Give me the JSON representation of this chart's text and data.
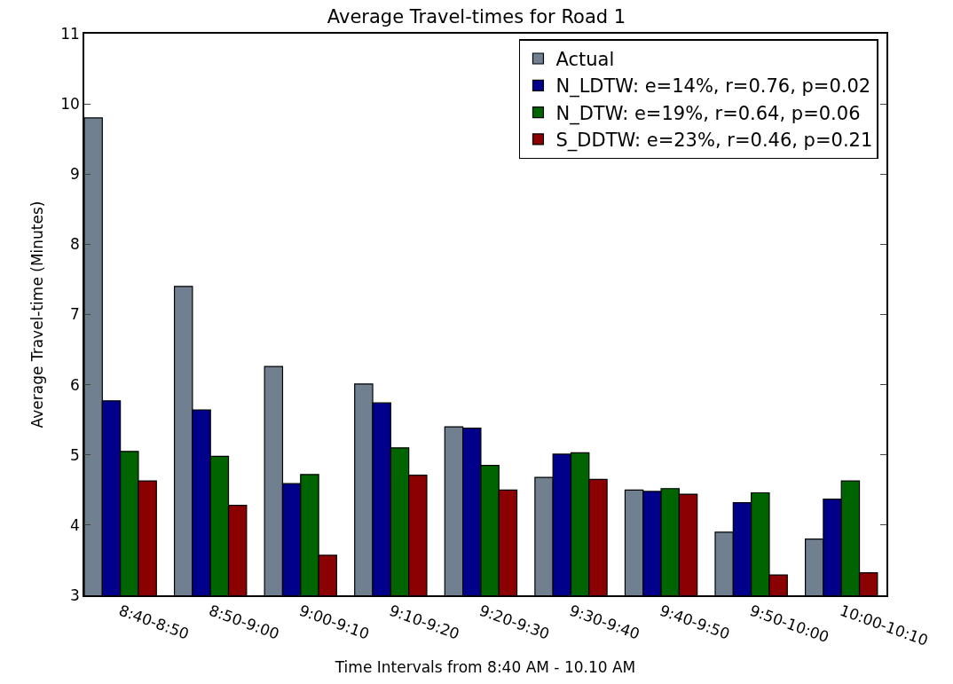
{
  "chart_data": {
    "type": "bar",
    "title": "Average Travel-times for Road 1",
    "xlabel": "Time Intervals from 8:40 AM - 10.10 AM",
    "ylabel": "Average Travel-time (Minutes)",
    "categories": [
      "8:40-8:50",
      "8:50-9:00",
      "9:00-9:10",
      "9:10-9:20",
      "9:20-9:30",
      "9:30-9:40",
      "9:40-9:50",
      "9:50-10:00",
      "10:00-10:10"
    ],
    "series": [
      {
        "name": "Actual",
        "color": "#708090",
        "values": [
          9.8,
          7.4,
          6.26,
          6.01,
          5.4,
          4.68,
          4.5,
          3.9,
          3.8
        ]
      },
      {
        "name": "N_LDTW: e=14%, r=0.76, p=0.02",
        "color": "#00008b",
        "values": [
          5.77,
          5.64,
          4.59,
          5.74,
          5.38,
          5.01,
          4.48,
          4.32,
          4.37
        ]
      },
      {
        "name": "N_DTW: e=19%, r=0.64, p=0.06",
        "color": "#006400",
        "values": [
          5.05,
          4.98,
          4.72,
          5.1,
          4.85,
          5.03,
          4.52,
          4.46,
          4.63
        ]
      },
      {
        "name": "S_DDTW: e=23%, r=0.46, p=0.21",
        "color": "#8b0000",
        "values": [
          4.63,
          4.28,
          3.57,
          4.71,
          4.5,
          4.65,
          4.44,
          3.29,
          3.32
        ]
      }
    ],
    "ylim": [
      3,
      11
    ],
    "yticks": [
      3,
      4,
      5,
      6,
      7,
      8,
      9,
      10,
      11
    ],
    "legend": "top right"
  }
}
